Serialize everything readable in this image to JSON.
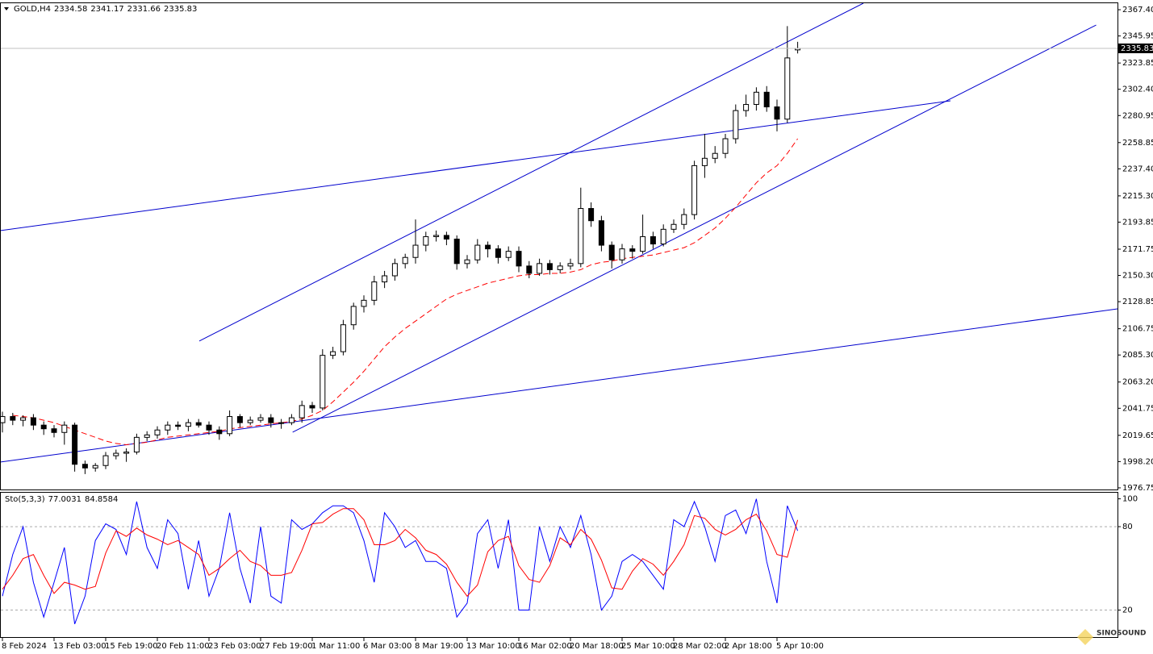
{
  "chart_data": [
    {
      "type": "candlestick",
      "symbol": "GOLD,H4",
      "ohlc": [
        2334.58,
        2341.17,
        2331.66,
        2335.83
      ],
      "categories": [
        "8 Feb 2024",
        null,
        null,
        null,
        null,
        "13 Feb 03:00",
        null,
        null,
        null,
        null,
        "15 Feb 19:00",
        null,
        null,
        null,
        null,
        "20 Feb 11:00",
        null,
        null,
        null,
        null,
        "23 Feb 03:00",
        null,
        null,
        null,
        null,
        "27 Feb 19:00",
        null,
        null,
        null,
        null,
        "1 Mar 11:00",
        null,
        null,
        null,
        null,
        "6 Mar 03:00",
        null,
        null,
        null,
        null,
        "8 Mar 19:00",
        null,
        null,
        null,
        null,
        "13 Mar 10:00",
        null,
        null,
        null,
        null,
        "16 Mar 02:00",
        null,
        null,
        null,
        null,
        "20 Mar 18:00",
        null,
        null,
        null,
        null,
        "25 Mar 10:00",
        null,
        null,
        null,
        null,
        "28 Mar 02:00",
        null,
        null,
        null,
        null,
        "2 Apr 18:00",
        null,
        null,
        null,
        null,
        "5 Apr 10:00",
        null,
        null
      ],
      "open": [
        2030,
        2035,
        2032,
        2034,
        2028,
        2025,
        2022,
        2028,
        1996,
        1993,
        1995,
        2003,
        2005,
        2006,
        2018,
        2020,
        2024,
        2028,
        2027,
        2030,
        2028,
        2024,
        2021,
        2035,
        2030,
        2032,
        2034,
        2030,
        2030,
        2034,
        2044,
        2042,
        2085,
        2088,
        2110,
        2125,
        2130,
        2145,
        2150,
        2160,
        2165,
        2175,
        2182,
        2183,
        2180,
        2160,
        2163,
        2175,
        2172,
        2165,
        2170,
        2158,
        2152,
        2160,
        2155,
        2158,
        2160,
        2205,
        2195,
        2175,
        2163,
        2172,
        2170,
        2182,
        2176,
        2188,
        2192,
        2200,
        2240,
        2246,
        2250,
        2262,
        2285,
        2290,
        2300,
        2288,
        2278,
        2334.58
      ],
      "high": [
        2039,
        2038,
        2036,
        2037,
        2031,
        2028,
        2031,
        2030,
        1999,
        1997,
        2006,
        2008,
        2009,
        2021,
        2023,
        2027,
        2031,
        2031,
        2033,
        2033,
        2031,
        2027,
        2040,
        2037,
        2035,
        2037,
        2037,
        2033,
        2037,
        2048,
        2047,
        2090,
        2092,
        2114,
        2128,
        2134,
        2150,
        2154,
        2164,
        2168,
        2196,
        2186,
        2187,
        2186,
        2183,
        2167,
        2180,
        2178,
        2175,
        2174,
        2174,
        2162,
        2164,
        2163,
        2161,
        2164,
        2222,
        2210,
        2199,
        2178,
        2176,
        2175,
        2200,
        2186,
        2192,
        2196,
        2205,
        2244,
        2266,
        2256,
        2266,
        2290,
        2298,
        2304,
        2305,
        2294,
        2354,
        2341.17
      ],
      "low": [
        2022,
        2028,
        2027,
        2024,
        2020,
        2018,
        2012,
        1990,
        1988,
        1990,
        1992,
        2000,
        1998,
        2004,
        2015,
        2017,
        2020,
        2024,
        2023,
        2026,
        2020,
        2016,
        2019,
        2026,
        2028,
        2030,
        2026,
        2025,
        2028,
        2030,
        2038,
        2040,
        2082,
        2085,
        2106,
        2120,
        2126,
        2140,
        2146,
        2156,
        2160,
        2170,
        2178,
        2175,
        2155,
        2156,
        2160,
        2165,
        2160,
        2162,
        2153,
        2148,
        2150,
        2151,
        2152,
        2155,
        2157,
        2190,
        2170,
        2156,
        2160,
        2164,
        2168,
        2172,
        2174,
        2185,
        2188,
        2196,
        2230,
        2242,
        2246,
        2258,
        2280,
        2285,
        2284,
        2268,
        2275,
        2331.66
      ],
      "close": [
        2035,
        2032,
        2034,
        2028,
        2025,
        2022,
        2028,
        1996,
        1993,
        1995,
        2003,
        2005,
        2006,
        2018,
        2020,
        2024,
        2028,
        2027,
        2030,
        2028,
        2024,
        2021,
        2035,
        2030,
        2032,
        2034,
        2030,
        2030,
        2034,
        2044,
        2042,
        2085,
        2088,
        2110,
        2125,
        2130,
        2145,
        2150,
        2160,
        2165,
        2175,
        2182,
        2183,
        2180,
        2160,
        2163,
        2175,
        2172,
        2165,
        2170,
        2158,
        2152,
        2160,
        2155,
        2158,
        2160,
        2205,
        2195,
        2175,
        2163,
        2172,
        2170,
        2182,
        2176,
        2188,
        2192,
        2200,
        2240,
        2246,
        2250,
        2262,
        2285,
        2290,
        2300,
        2288,
        2278,
        2328,
        2335.83
      ],
      "up_color": "#ffffff",
      "down_color": "#000000",
      "wick_color": "#000000",
      "series": [
        {
          "color": "#ff0000",
          "style": "dashed",
          "values": [
            null,
            2036,
            2035,
            2034,
            2032,
            2030,
            2027,
            2024,
            2021,
            2018,
            2015,
            2013,
            2012,
            2013,
            2014,
            2016,
            2018,
            2019,
            2020,
            2021,
            2022,
            2023,
            2025,
            2026,
            2027,
            2028,
            2029,
            2030,
            2031,
            2033,
            2036,
            2040,
            2047,
            2055,
            2063,
            2072,
            2082,
            2092,
            2100,
            2107,
            2113,
            2119,
            2125,
            2131,
            2135,
            2138,
            2141,
            2144,
            2146,
            2148,
            2150,
            2151,
            2151,
            2152,
            2152,
            2153,
            2155,
            2159,
            2161,
            2162,
            2164,
            2165,
            2166,
            2167,
            2169,
            2171,
            2173,
            2177,
            2183,
            2189,
            2197,
            2206,
            2216,
            2226,
            2234,
            2240,
            2250,
            2262
          ]
        }
      ],
      "trendline_color": "#0000cd",
      "trendlines": [
        {
          "x": [
            19.06,
            83.36
          ],
          "y": [
            2096.7,
            2372.7
          ]
        },
        {
          "x": [
            28.1,
            105.9
          ],
          "y": [
            2022.2,
            2354.9
          ]
        },
        {
          "x": [
            -0.23,
            91.8
          ],
          "y": [
            2186.9,
            2293.0
          ]
        },
        {
          "x": [
            -0.23,
            108.0
          ],
          "y": [
            1997.8,
            2123.0
          ]
        }
      ],
      "last_price": 2335.83,
      "ylim": [
        1975.4,
        2372.7
      ],
      "yticks": [
        1976.75,
        {
          "value": 1998.2,
          "label": "1998.20"
        },
        2019.65,
        2041.75,
        {
          "value": 2063.2,
          "label": "2063.20"
        },
        {
          "value": 2085.3,
          "label": "2085.30"
        },
        2106.75,
        2128.85,
        {
          "value": 2150.3,
          "label": "2150.30"
        },
        2171.75,
        2193.85,
        {
          "value": 2215.3,
          "label": "2215.30"
        },
        {
          "value": 2237.4,
          "label": "2237.40"
        },
        2258.85,
        2280.95,
        {
          "value": 2302.4,
          "label": "2302.40"
        },
        2323.85,
        2345.95,
        {
          "value": 2367.4,
          "label": "2367.40"
        }
      ],
      "grid": false
    },
    {
      "type": "line",
      "title": "Sto(5,3,3)",
      "current": [
        77.0031,
        84.8584
      ],
      "series": [
        {
          "color": "#0000ff",
          "values": [
            30,
            60,
            80,
            40,
            15,
            40,
            65,
            10,
            30,
            70,
            82,
            78,
            60,
            98,
            65,
            50,
            85,
            75,
            35,
            70,
            30,
            50,
            90,
            50,
            25,
            80,
            30,
            25,
            85,
            78,
            82,
            90,
            95,
            95,
            90,
            70,
            40,
            90,
            80,
            65,
            70,
            55,
            55,
            50,
            15,
            25,
            75,
            85,
            50,
            85,
            20,
            20,
            80,
            55,
            80,
            65,
            88,
            60,
            20,
            30,
            55,
            60,
            55,
            45,
            35,
            85,
            80,
            98,
            80,
            55,
            88,
            92,
            75,
            100,
            55,
            25,
            95,
            77.0031
          ]
        },
        {
          "color": "#ff0000",
          "values": [
            35,
            45,
            57,
            60,
            45,
            32,
            40,
            38,
            35,
            37,
            61,
            77,
            73,
            79,
            74,
            71,
            67,
            70,
            65,
            60,
            45,
            50,
            57,
            63,
            55,
            52,
            45,
            45,
            47,
            63,
            82,
            83,
            89,
            93,
            93,
            85,
            67,
            67,
            70,
            78,
            72,
            63,
            60,
            53,
            40,
            30,
            38,
            62,
            70,
            73,
            52,
            42,
            40,
            52,
            72,
            67,
            78,
            71,
            56,
            36,
            35,
            48,
            57,
            53,
            45,
            55,
            67,
            88,
            86,
            78,
            74,
            78,
            85,
            89,
            77,
            60,
            58,
            84.8584
          ]
        }
      ],
      "levels": [
        80,
        20
      ],
      "ylim": [
        0.6,
        104.4
      ],
      "yticks": [
        100,
        80,
        20
      ]
    }
  ],
  "watermark": "SINOSOUND"
}
